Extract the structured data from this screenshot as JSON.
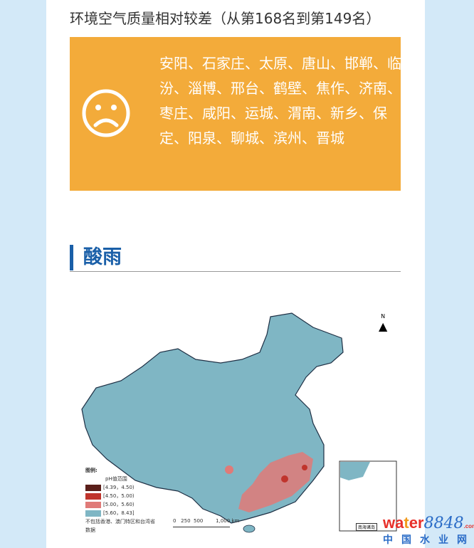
{
  "subtitle": "环境空气质量相对较差（从第168名到第149名）",
  "box": {
    "icon": "sad-face-icon",
    "color": "#f3ab3a",
    "cities": "安阳、石家庄、太原、唐山、邯郸、临汾、淄博、邢台、鹤壁、焦作、济南、枣庄、咸阳、运城、渭南、新乡、保定、阳泉、聊城、滨州、晋城"
  },
  "section": {
    "title": "酸雨",
    "accent": "#1a5fa8"
  },
  "map": {
    "north": "N",
    "legend_title": "图例:",
    "legend_subtitle": "pH值范围",
    "legend": [
      {
        "label": "[4.39，4.50)",
        "color": "#5a1f1a"
      },
      {
        "label": "[4.50，5.00)",
        "color": "#c0342c"
      },
      {
        "label": "[5.00，5.60)",
        "color": "#e07a78"
      },
      {
        "label": "[5.60，8.43]",
        "color": "#7fb6c4"
      }
    ],
    "note": "不包括香港、澳门特区和台湾省数据",
    "scale": [
      "0",
      "250",
      "500",
      "1,000 km"
    ],
    "inset_label": "南海诸岛"
  },
  "watermark": {
    "brand": "water8848",
    "domain": ".com",
    "cn": "中国水业网"
  }
}
